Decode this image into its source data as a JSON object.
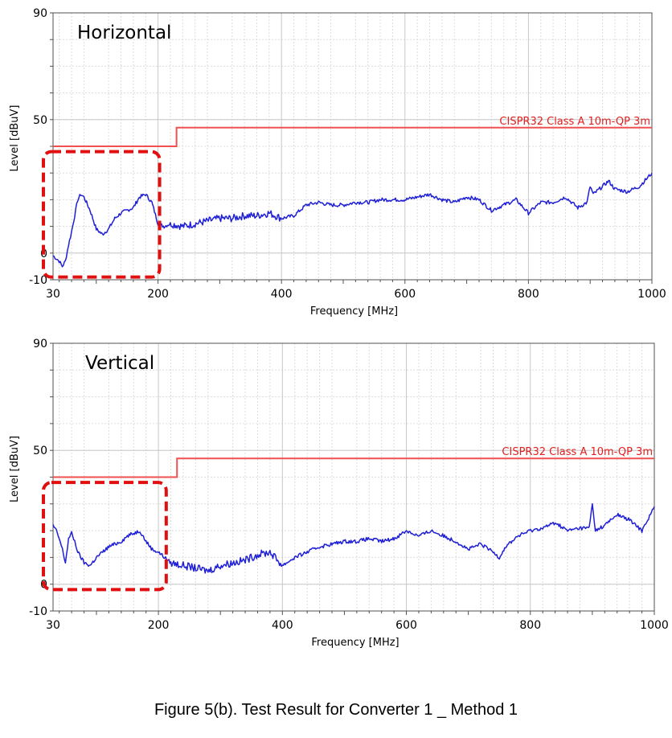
{
  "caption": "Figure 5(b). Test Result for Converter 1 _ Method 1",
  "colors": {
    "trace": "#1f1fd6",
    "limit": "#f05050",
    "highlight": "#e01010",
    "grid": "#c8c8c8"
  },
  "chart_data": [
    {
      "type": "line",
      "label": "Horizontal",
      "xlabel": "Frequency [MHz]",
      "ylabel": "Level [dBuV]",
      "xlim": [
        30,
        1000
      ],
      "ylim": [
        -10,
        90
      ],
      "x_ticks": [
        30,
        200,
        400,
        600,
        800,
        1000
      ],
      "y_ticks": [
        -10,
        0,
        50,
        90
      ],
      "grid": true,
      "limit_line": {
        "name": "CISPR32 Class A 10m-QP 3m",
        "points": [
          [
            30,
            40
          ],
          [
            230,
            40
          ],
          [
            230,
            47
          ],
          [
            1000,
            47
          ]
        ]
      },
      "highlight_box": {
        "x_range": [
          30,
          200
        ],
        "y_range": [
          -9,
          38
        ]
      },
      "series": [
        {
          "x": [
            30,
            35,
            40,
            45,
            50,
            55,
            60,
            65,
            70,
            75,
            80,
            90,
            100,
            110,
            120,
            130,
            140,
            150,
            160,
            170,
            180,
            190,
            200,
            210,
            220,
            240,
            260,
            280,
            300,
            320,
            340,
            360,
            380,
            400,
            420,
            440,
            460,
            480,
            500,
            520,
            540,
            560,
            580,
            600,
            620,
            640,
            660,
            680,
            700,
            720,
            740,
            760,
            780,
            800,
            820,
            840,
            860,
            880,
            895,
            900,
            905,
            920,
            930,
            940,
            960,
            980,
            1000
          ],
          "y": [
            -1,
            -2,
            -3,
            -5,
            -3,
            3,
            8,
            14,
            20,
            22,
            21,
            16,
            9,
            7,
            9,
            13,
            15,
            16,
            17,
            21,
            22,
            19,
            11,
            10,
            11,
            10,
            11,
            12,
            13,
            13,
            14,
            14,
            15,
            13,
            14,
            18,
            19,
            18,
            18,
            19,
            19,
            20,
            20,
            20,
            21,
            22,
            20,
            19,
            21,
            20,
            16,
            18,
            20,
            15,
            19,
            19,
            21,
            17,
            19,
            25,
            22,
            25,
            27,
            24,
            23,
            25,
            30
          ]
        }
      ]
    },
    {
      "type": "line",
      "label": "Vertical",
      "xlabel": "Frequency [MHz]",
      "ylabel": "Level [dBuV]",
      "xlim": [
        30,
        1000
      ],
      "ylim": [
        -10,
        90
      ],
      "x_ticks": [
        30,
        200,
        400,
        600,
        800,
        1000
      ],
      "y_ticks": [
        -10,
        0,
        50,
        90
      ],
      "grid": true,
      "limit_line": {
        "name": "CISPR32 Class A 10m-QP 3m",
        "points": [
          [
            30,
            40
          ],
          [
            230,
            40
          ],
          [
            230,
            47
          ],
          [
            1000,
            47
          ]
        ]
      },
      "highlight_box": {
        "x_range": [
          30,
          210
        ],
        "y_range": [
          -2,
          38
        ]
      },
      "series": [
        {
          "x": [
            30,
            35,
            40,
            45,
            50,
            55,
            60,
            65,
            70,
            80,
            90,
            100,
            110,
            120,
            130,
            140,
            150,
            160,
            170,
            180,
            190,
            200,
            210,
            220,
            240,
            260,
            280,
            300,
            320,
            340,
            360,
            380,
            400,
            420,
            440,
            460,
            480,
            500,
            520,
            540,
            560,
            580,
            600,
            620,
            640,
            660,
            680,
            700,
            720,
            740,
            750,
            760,
            780,
            800,
            820,
            840,
            860,
            880,
            895,
            900,
            905,
            920,
            940,
            960,
            980,
            1000
          ],
          "y": [
            22,
            20,
            17,
            13,
            8,
            17,
            19,
            16,
            12,
            8,
            7,
            10,
            12,
            14,
            15,
            16,
            18,
            19,
            20,
            16,
            13,
            12,
            10,
            8,
            7,
            6,
            5,
            7,
            8,
            9,
            11,
            12,
            7,
            10,
            12,
            14,
            15,
            16,
            16,
            17,
            16,
            17,
            20,
            18,
            20,
            18,
            16,
            13,
            15,
            12,
            10,
            14,
            18,
            20,
            21,
            23,
            20,
            21,
            21,
            30,
            20,
            22,
            26,
            24,
            20,
            29
          ]
        }
      ]
    }
  ]
}
